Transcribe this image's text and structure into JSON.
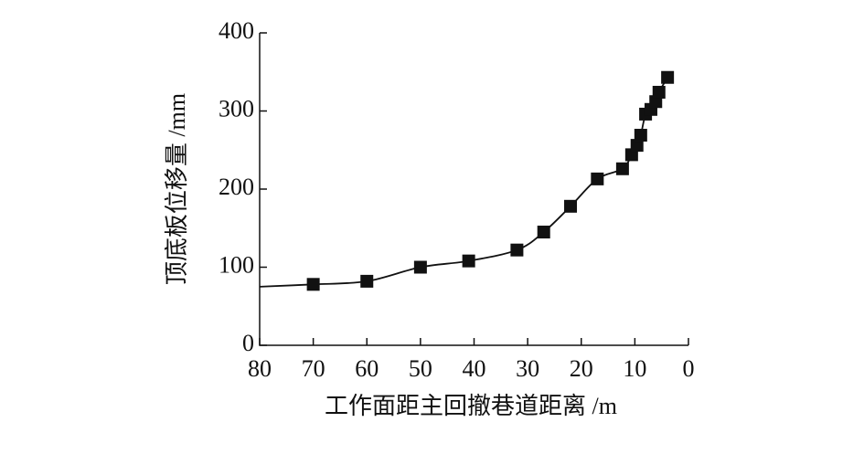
{
  "chart_data": {
    "type": "line",
    "x_label": "工作面距主回撤巷道距离 /m",
    "y_label": "顶底板位移量 /mm",
    "xlim": [
      80,
      0
    ],
    "xticks": [
      80,
      70,
      60,
      50,
      40,
      30,
      20,
      10,
      0
    ],
    "ylim": [
      0,
      400
    ],
    "yticks": [
      0,
      100,
      200,
      300,
      400
    ],
    "series": [
      {
        "style": "line",
        "color": "#111111",
        "x": [
          80,
          70,
          60,
          50,
          41,
          32,
          27,
          22,
          17,
          12.3,
          10.6,
          9.6,
          8.9,
          8,
          7,
          6.1,
          5.5,
          3.9
        ],
        "values": [
          75,
          78,
          82,
          100,
          108,
          122,
          145,
          178,
          213,
          226,
          244,
          256,
          269,
          296,
          302,
          312,
          324,
          343
        ]
      },
      {
        "style": "marker",
        "color": "#111111",
        "x": [
          70,
          60,
          50,
          41,
          32,
          27,
          22,
          17,
          12.3,
          10.6,
          9.6,
          8.9,
          8,
          7,
          6.1,
          5.5,
          3.9
        ],
        "values": [
          78,
          82,
          100,
          108,
          122,
          145,
          178,
          213,
          226,
          244,
          256,
          269,
          296,
          302,
          312,
          324,
          343
        ]
      }
    ]
  }
}
